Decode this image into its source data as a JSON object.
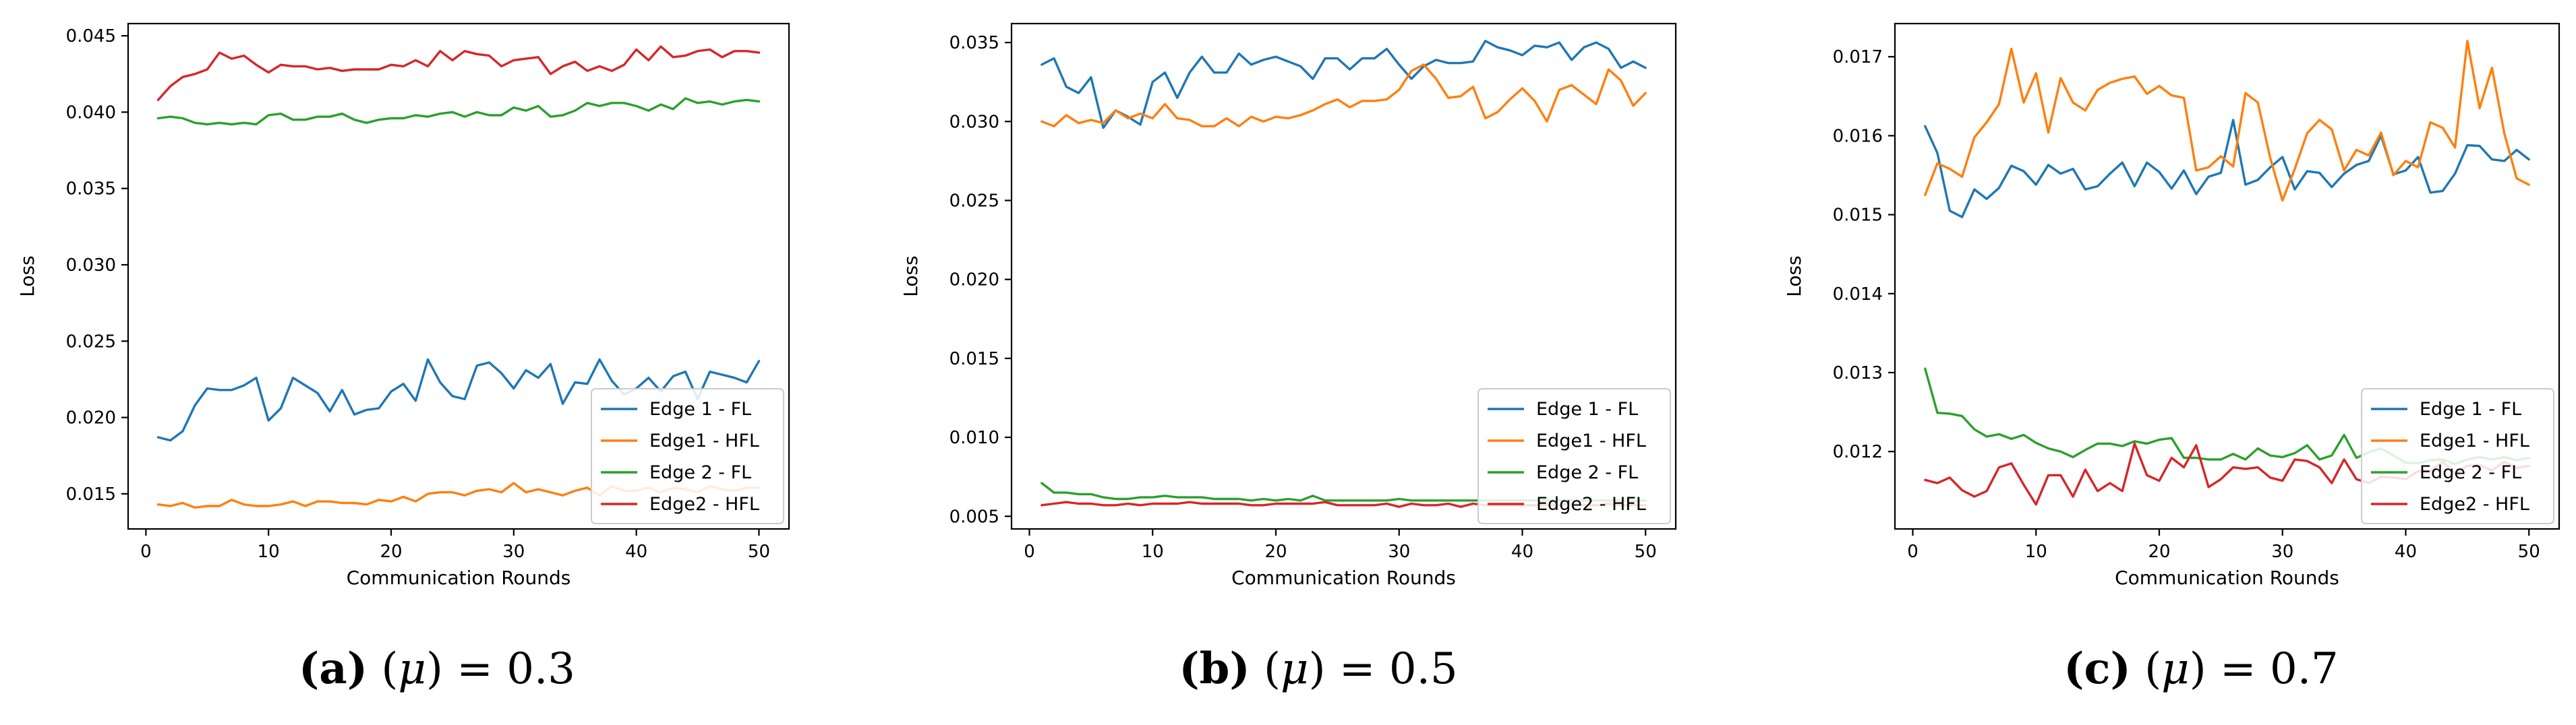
{
  "colors": {
    "Edge 1 - FL": "#1f77b4",
    "Edge1 - HFL": "#ff7f0e",
    "Edge 2 - FL": "#2ca02c",
    "Edge2 - HFL": "#d62728"
  },
  "captions": [
    {
      "letter": "(a)",
      "open": "(",
      "mu": "μ",
      "rest": ") = 0.3"
    },
    {
      "letter": "(b)",
      "open": "(",
      "mu": "μ",
      "rest": ") = 0.5"
    },
    {
      "letter": "(c)",
      "open": "(",
      "mu": "μ",
      "rest": ") = 0.7"
    }
  ],
  "chart_data": [
    {
      "type": "line",
      "xlabel": "Communication Rounds",
      "ylabel": "Loss",
      "xlim": [
        -1.45,
        52.45
      ],
      "ylim": [
        0.0127,
        0.0458
      ],
      "xticks": [
        0,
        10,
        20,
        30,
        40,
        50
      ],
      "yticks": [
        0.015,
        0.02,
        0.025,
        0.03,
        0.035,
        0.04,
        0.045
      ],
      "ytick_labels": [
        "0.015",
        "0.020",
        "0.025",
        "0.030",
        "0.035",
        "0.040",
        "0.045"
      ],
      "legend_position": "lower right",
      "x": [
        1,
        2,
        3,
        4,
        5,
        6,
        7,
        8,
        9,
        10,
        11,
        12,
        13,
        14,
        15,
        16,
        17,
        18,
        19,
        20,
        21,
        22,
        23,
        24,
        25,
        26,
        27,
        28,
        29,
        30,
        31,
        32,
        33,
        34,
        35,
        36,
        37,
        38,
        39,
        40,
        41,
        42,
        43,
        44,
        45,
        46,
        47,
        48,
        49,
        50
      ],
      "series": [
        {
          "name": "Edge 1 - FL",
          "values": [
            0.0187,
            0.0185,
            0.0191,
            0.0208,
            0.0219,
            0.0218,
            0.0218,
            0.0221,
            0.0226,
            0.0198,
            0.0206,
            0.0226,
            0.0221,
            0.0216,
            0.0204,
            0.0218,
            0.0202,
            0.0205,
            0.0206,
            0.0217,
            0.0222,
            0.0211,
            0.0238,
            0.0223,
            0.0214,
            0.0212,
            0.0234,
            0.0236,
            0.0229,
            0.0219,
            0.0231,
            0.0226,
            0.0235,
            0.0209,
            0.0223,
            0.0222,
            0.0238,
            0.0224,
            0.0215,
            0.0219,
            0.0226,
            0.0217,
            0.0227,
            0.023,
            0.0212,
            0.023,
            0.0228,
            0.0226,
            0.0223,
            0.0237
          ]
        },
        {
          "name": "Edge1 - HFL",
          "values": [
            0.0143,
            0.0142,
            0.0144,
            0.0141,
            0.0142,
            0.0142,
            0.0146,
            0.0143,
            0.0142,
            0.0142,
            0.0143,
            0.0145,
            0.0142,
            0.0145,
            0.0145,
            0.0144,
            0.0144,
            0.0143,
            0.0146,
            0.0145,
            0.0148,
            0.0145,
            0.015,
            0.0151,
            0.0151,
            0.0149,
            0.0152,
            0.0153,
            0.0151,
            0.0157,
            0.0151,
            0.0153,
            0.0151,
            0.0149,
            0.0152,
            0.0154,
            0.0149,
            0.0155,
            0.0152,
            0.0152,
            0.0154,
            0.0151,
            0.0154,
            0.0153,
            0.0151,
            0.0155,
            0.0153,
            0.0152,
            0.0154,
            0.0154
          ]
        },
        {
          "name": "Edge 2 - FL",
          "values": [
            0.0396,
            0.0397,
            0.0396,
            0.0393,
            0.0392,
            0.0393,
            0.0392,
            0.0393,
            0.0392,
            0.0398,
            0.0399,
            0.0395,
            0.0395,
            0.0397,
            0.0397,
            0.0399,
            0.0395,
            0.0393,
            0.0395,
            0.0396,
            0.0396,
            0.0398,
            0.0397,
            0.0399,
            0.04,
            0.0397,
            0.04,
            0.0398,
            0.0398,
            0.0403,
            0.0401,
            0.0404,
            0.0397,
            0.0398,
            0.0401,
            0.0406,
            0.0404,
            0.0406,
            0.0406,
            0.0404,
            0.0401,
            0.0405,
            0.0402,
            0.0409,
            0.0406,
            0.0407,
            0.0405,
            0.0407,
            0.0408,
            0.0407
          ]
        },
        {
          "name": "Edge2 - HFL",
          "values": [
            0.0408,
            0.0417,
            0.0423,
            0.0425,
            0.0428,
            0.0439,
            0.0435,
            0.0437,
            0.0431,
            0.0426,
            0.0431,
            0.043,
            0.043,
            0.0428,
            0.0429,
            0.0427,
            0.0428,
            0.0428,
            0.0428,
            0.0431,
            0.043,
            0.0434,
            0.043,
            0.044,
            0.0434,
            0.044,
            0.0438,
            0.0437,
            0.043,
            0.0434,
            0.0435,
            0.0436,
            0.0425,
            0.043,
            0.0433,
            0.0427,
            0.043,
            0.0427,
            0.0431,
            0.0441,
            0.0434,
            0.0443,
            0.0436,
            0.0437,
            0.044,
            0.0441,
            0.0436,
            0.044,
            0.044,
            0.0439
          ]
        }
      ]
    },
    {
      "type": "line",
      "xlabel": "Communication Rounds",
      "ylabel": "Loss",
      "xlim": [
        -1.45,
        52.45
      ],
      "ylim": [
        0.0042,
        0.0362
      ],
      "xticks": [
        0,
        10,
        20,
        30,
        40,
        50
      ],
      "yticks": [
        0.005,
        0.01,
        0.015,
        0.02,
        0.025,
        0.03,
        0.035
      ],
      "ytick_labels": [
        "0.005",
        "0.010",
        "0.015",
        "0.020",
        "0.025",
        "0.030",
        "0.035"
      ],
      "legend_position": "lower right",
      "x": [
        1,
        2,
        3,
        4,
        5,
        6,
        7,
        8,
        9,
        10,
        11,
        12,
        13,
        14,
        15,
        16,
        17,
        18,
        19,
        20,
        21,
        22,
        23,
        24,
        25,
        26,
        27,
        28,
        29,
        30,
        31,
        32,
        33,
        34,
        35,
        36,
        37,
        38,
        39,
        40,
        41,
        42,
        43,
        44,
        45,
        46,
        47,
        48,
        49,
        50
      ],
      "series": [
        {
          "name": "Edge 1 - FL",
          "values": [
            0.0336,
            0.034,
            0.0322,
            0.0318,
            0.0328,
            0.0296,
            0.0307,
            0.0303,
            0.0298,
            0.0325,
            0.0331,
            0.0315,
            0.0331,
            0.0341,
            0.0331,
            0.0331,
            0.0343,
            0.0336,
            0.0339,
            0.0341,
            0.0338,
            0.0335,
            0.0327,
            0.034,
            0.034,
            0.0333,
            0.034,
            0.034,
            0.0346,
            0.0336,
            0.0327,
            0.0335,
            0.0339,
            0.0337,
            0.0337,
            0.0338,
            0.0351,
            0.0347,
            0.0345,
            0.0342,
            0.0348,
            0.0347,
            0.035,
            0.0339,
            0.0347,
            0.035,
            0.0346,
            0.0334,
            0.0338,
            0.0334
          ]
        },
        {
          "name": "Edge1 - HFL",
          "values": [
            0.03,
            0.0297,
            0.0304,
            0.0299,
            0.0301,
            0.0299,
            0.0307,
            0.0302,
            0.0305,
            0.0302,
            0.0311,
            0.0302,
            0.0301,
            0.0297,
            0.0297,
            0.0302,
            0.0297,
            0.0303,
            0.03,
            0.0303,
            0.0302,
            0.0304,
            0.0307,
            0.0311,
            0.0314,
            0.0309,
            0.0313,
            0.0313,
            0.0314,
            0.032,
            0.0332,
            0.0336,
            0.0327,
            0.0315,
            0.0316,
            0.0322,
            0.0302,
            0.0306,
            0.0314,
            0.0321,
            0.0313,
            0.03,
            0.032,
            0.0323,
            0.0317,
            0.0311,
            0.0333,
            0.0326,
            0.031,
            0.0318
          ]
        },
        {
          "name": "Edge 2 - FL",
          "values": [
            0.0071,
            0.0065,
            0.0065,
            0.0064,
            0.0064,
            0.0062,
            0.0061,
            0.0061,
            0.0062,
            0.0062,
            0.0063,
            0.0062,
            0.0062,
            0.0062,
            0.0061,
            0.0061,
            0.0061,
            0.006,
            0.0061,
            0.006,
            0.0061,
            0.006,
            0.0063,
            0.006,
            0.006,
            0.006,
            0.006,
            0.006,
            0.006,
            0.0061,
            0.006,
            0.006,
            0.006,
            0.006,
            0.006,
            0.006,
            0.006,
            0.006,
            0.006,
            0.006,
            0.006,
            0.006,
            0.006,
            0.006,
            0.006,
            0.006,
            0.006,
            0.006,
            0.006,
            0.006
          ]
        },
        {
          "name": "Edge2 - HFL",
          "values": [
            0.0057,
            0.0058,
            0.0059,
            0.0058,
            0.0058,
            0.0057,
            0.0057,
            0.0058,
            0.0057,
            0.0058,
            0.0058,
            0.0058,
            0.0059,
            0.0058,
            0.0058,
            0.0058,
            0.0058,
            0.0057,
            0.0057,
            0.0058,
            0.0058,
            0.0058,
            0.0058,
            0.0059,
            0.0057,
            0.0057,
            0.0057,
            0.0057,
            0.0058,
            0.0056,
            0.0058,
            0.0057,
            0.0057,
            0.0058,
            0.0056,
            0.0058,
            0.0057,
            0.0057,
            0.0057,
            0.0057,
            0.0057,
            0.0057,
            0.0057,
            0.0058,
            0.0057,
            0.0057,
            0.0058,
            0.0057,
            0.0057,
            0.0057
          ]
        }
      ]
    },
    {
      "type": "line",
      "xlabel": "Communication Rounds",
      "ylabel": "Loss",
      "xlim": [
        -1.45,
        52.45
      ],
      "ylim": [
        0.01102,
        0.01742
      ],
      "xticks": [
        0,
        10,
        20,
        30,
        40,
        50
      ],
      "yticks": [
        0.012,
        0.013,
        0.014,
        0.015,
        0.016,
        0.017
      ],
      "ytick_labels": [
        "0.012",
        "0.013",
        "0.014",
        "0.015",
        "0.016",
        "0.017"
      ],
      "legend_position": "lower right",
      "x": [
        1,
        2,
        3,
        4,
        5,
        6,
        7,
        8,
        9,
        10,
        11,
        12,
        13,
        14,
        15,
        16,
        17,
        18,
        19,
        20,
        21,
        22,
        23,
        24,
        25,
        26,
        27,
        28,
        29,
        30,
        31,
        32,
        33,
        34,
        35,
        36,
        37,
        38,
        39,
        40,
        41,
        42,
        43,
        44,
        45,
        46,
        47,
        48,
        49,
        50
      ],
      "series": [
        {
          "name": "Edge 1 - FL",
          "values": [
            0.01612,
            0.01578,
            0.01505,
            0.01497,
            0.01532,
            0.0152,
            0.01534,
            0.01562,
            0.01555,
            0.01538,
            0.01563,
            0.01552,
            0.01558,
            0.01532,
            0.01536,
            0.01552,
            0.01566,
            0.01536,
            0.01566,
            0.01554,
            0.01533,
            0.01556,
            0.01526,
            0.01548,
            0.01553,
            0.0162,
            0.01538,
            0.01544,
            0.0156,
            0.01573,
            0.01532,
            0.01555,
            0.01553,
            0.01535,
            0.01552,
            0.01563,
            0.01568,
            0.016,
            0.01551,
            0.01556,
            0.01573,
            0.01528,
            0.0153,
            0.01552,
            0.01588,
            0.01587,
            0.0157,
            0.01568,
            0.01582,
            0.0157
          ]
        },
        {
          "name": "Edge1 - HFL",
          "values": [
            0.01525,
            0.01565,
            0.01558,
            0.01548,
            0.01598,
            0.01617,
            0.0164,
            0.0171,
            0.01642,
            0.01679,
            0.01604,
            0.01673,
            0.01642,
            0.01632,
            0.01658,
            0.01667,
            0.01672,
            0.01675,
            0.01653,
            0.01663,
            0.01651,
            0.01648,
            0.01556,
            0.0156,
            0.01574,
            0.01561,
            0.01654,
            0.01642,
            0.01572,
            0.01518,
            0.01558,
            0.01603,
            0.0162,
            0.01608,
            0.01556,
            0.01582,
            0.01575,
            0.01604,
            0.0155,
            0.01568,
            0.0156,
            0.01617,
            0.0161,
            0.01585,
            0.0172,
            0.01635,
            0.01686,
            0.01603,
            0.01546,
            0.01538
          ]
        },
        {
          "name": "Edge 2 - FL",
          "values": [
            0.01305,
            0.01249,
            0.01248,
            0.01245,
            0.01228,
            0.01219,
            0.01222,
            0.01216,
            0.01221,
            0.01211,
            0.01204,
            0.012,
            0.01193,
            0.01202,
            0.0121,
            0.0121,
            0.01207,
            0.01213,
            0.0121,
            0.01215,
            0.01217,
            0.01192,
            0.01192,
            0.0119,
            0.0119,
            0.01197,
            0.0119,
            0.01204,
            0.01195,
            0.01193,
            0.01198,
            0.01208,
            0.0119,
            0.01195,
            0.01221,
            0.01192,
            0.01199,
            0.01204,
            0.01195,
            0.01186,
            0.01185,
            0.01189,
            0.0119,
            0.01184,
            0.0119,
            0.01193,
            0.0119,
            0.01193,
            0.01189,
            0.01192
          ]
        },
        {
          "name": "Edge2 - HFL",
          "values": [
            0.01164,
            0.0116,
            0.01167,
            0.01151,
            0.01143,
            0.0115,
            0.0118,
            0.01185,
            0.01158,
            0.01133,
            0.0117,
            0.0117,
            0.01143,
            0.01177,
            0.0115,
            0.0116,
            0.0115,
            0.0121,
            0.0117,
            0.01163,
            0.01192,
            0.0118,
            0.01208,
            0.01155,
            0.01165,
            0.0118,
            0.01178,
            0.0118,
            0.01167,
            0.01163,
            0.0119,
            0.01188,
            0.0118,
            0.0116,
            0.0119,
            0.01165,
            0.0116,
            0.01168,
            0.01167,
            0.01165,
            0.01175,
            0.01175,
            0.01187,
            0.01172,
            0.01182,
            0.01183,
            0.01176,
            0.01187,
            0.01179,
            0.01182
          ]
        }
      ]
    }
  ]
}
